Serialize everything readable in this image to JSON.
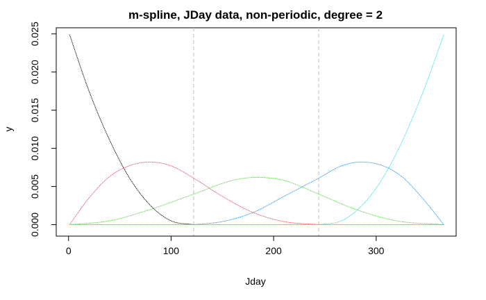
{
  "chart_data": {
    "type": "line",
    "title": "m-spline, JDay data, non-periodic, degree = 2",
    "xlabel": "Jday",
    "ylabel": "y",
    "xlim": [
      -12,
      378
    ],
    "ylim": [
      -0.0015,
      0.0258
    ],
    "x_ticks": [
      0,
      100,
      200,
      300
    ],
    "y_ticks": [
      0.0,
      0.005,
      0.01,
      0.015,
      0.02,
      0.025
    ],
    "y_tick_labels": [
      "0.000",
      "0.005",
      "0.010",
      "0.015",
      "0.020",
      "0.025"
    ],
    "knots": [
      122,
      244
    ],
    "boundary": [
      1,
      366
    ],
    "grid": false,
    "legend": "none",
    "series": [
      {
        "color": "#000000",
        "x": [
          1,
          20,
          40,
          60,
          80,
          100,
          122
        ],
        "values": [
          0.0249,
          0.0175,
          0.0111,
          0.006,
          0.0025,
          0.0005,
          0.0
        ]
      },
      {
        "color": "#df536b",
        "x": [
          1,
          20,
          40,
          61,
          80,
          100,
          122,
          150,
          180,
          210,
          244
        ],
        "values": [
          0.0,
          0.0035,
          0.0063,
          0.0078,
          0.0082,
          0.0077,
          0.0061,
          0.0037,
          0.0016,
          0.0004,
          0.0
        ]
      },
      {
        "color": "#61d04f",
        "x": [
          1,
          40,
          80,
          122,
          160,
          183,
          210,
          244,
          280,
          320,
          366
        ],
        "values": [
          0.0,
          0.0005,
          0.002,
          0.004,
          0.0058,
          0.0062,
          0.0058,
          0.004,
          0.002,
          0.0005,
          0.0
        ]
      },
      {
        "color": "#2297e6",
        "x": [
          122,
          150,
          180,
          210,
          244,
          266,
          285,
          305,
          325,
          345,
          366
        ],
        "values": [
          0.0,
          0.0004,
          0.0016,
          0.0037,
          0.0061,
          0.0077,
          0.0082,
          0.0078,
          0.0063,
          0.0035,
          0.0
        ]
      },
      {
        "color": "#28e2e5",
        "x": [
          244,
          266,
          286,
          306,
          326,
          346,
          366
        ],
        "values": [
          0.0,
          0.0005,
          0.0025,
          0.006,
          0.0111,
          0.0175,
          0.0249
        ]
      }
    ]
  }
}
